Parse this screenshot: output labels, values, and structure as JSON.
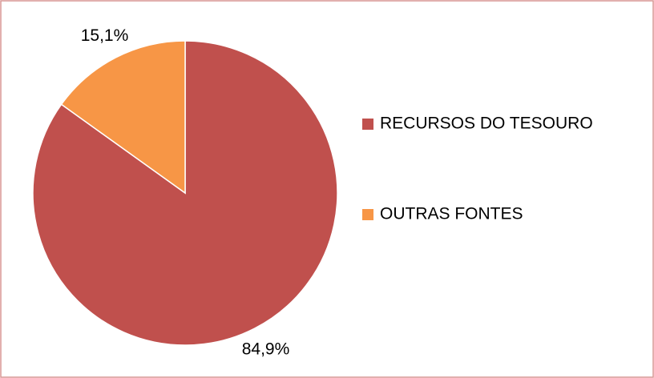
{
  "chart_data": {
    "type": "pie",
    "categories": [
      "RECURSOS DO TESOURO",
      "OUTRAS FONTES"
    ],
    "values": [
      84.9,
      15.1
    ],
    "value_labels": [
      "84,9%",
      "15,1%"
    ],
    "colors": [
      "#c0504d",
      "#f79646"
    ],
    "legend": "right"
  }
}
